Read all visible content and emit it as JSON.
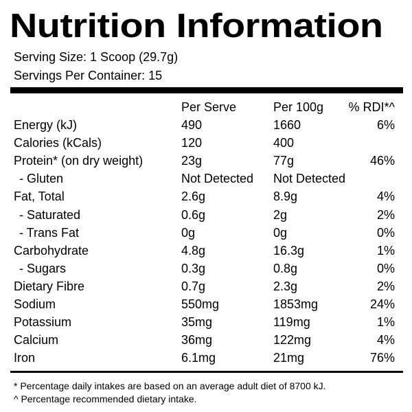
{
  "title": "Nutrition Information",
  "serving_size": "Serving Size: 1 Scoop (29.7g)",
  "servings_per_container": "Servings Per Container: 15",
  "table": {
    "headers": {
      "per_serve": "Per Serve",
      "per_100g": "Per 100g",
      "rdi": "% RDI*^"
    },
    "rows": [
      {
        "label": "Energy (kJ)",
        "per_serve": "490",
        "per_100g": "1660",
        "rdi": "6%"
      },
      {
        "label": "Calories (kCals)",
        "per_serve": "120",
        "per_100g": "400",
        "rdi": ""
      },
      {
        "label": "Protein* (on dry weight)",
        "per_serve": "23g",
        "per_100g": "77g",
        "rdi": "46%"
      },
      {
        "label": "- Gluten",
        "per_serve": "Not Detected",
        "per_100g": "Not Detected",
        "rdi": ""
      },
      {
        "label": "Fat, Total",
        "per_serve": "2.6g",
        "per_100g": "8.9g",
        "rdi": "4%"
      },
      {
        "label": "- Saturated",
        "per_serve": "0.6g",
        "per_100g": "2g",
        "rdi": "2%"
      },
      {
        "label": "- Trans Fat",
        "per_serve": "0g",
        "per_100g": "0g",
        "rdi": "0%"
      },
      {
        "label": "Carbohydrate",
        "per_serve": "4.8g",
        "per_100g": "16.3g",
        "rdi": "1%"
      },
      {
        "label": "- Sugars",
        "per_serve": "0.3g",
        "per_100g": "0.8g",
        "rdi": "0%"
      },
      {
        "label": "Dietary Fibre",
        "per_serve": "0.7g",
        "per_100g": "2.3g",
        "rdi": "2%"
      },
      {
        "label": "Sodium",
        "per_serve": "550mg",
        "per_100g": "1853mg",
        "rdi": "24%"
      },
      {
        "label": "Potassium",
        "per_serve": "35mg",
        "per_100g": "119mg",
        "rdi": "1%"
      },
      {
        "label": "Calcium",
        "per_serve": "36mg",
        "per_100g": "122mg",
        "rdi": "4%"
      },
      {
        "label": "Iron",
        "per_serve": "6.1mg",
        "per_100g": "21mg",
        "rdi": "76%"
      }
    ]
  },
  "footnotes": [
    "* Percentage daily intakes are based on an average adult diet of 8700 kJ.",
    "^ Percentage recommended dietary intake."
  ]
}
